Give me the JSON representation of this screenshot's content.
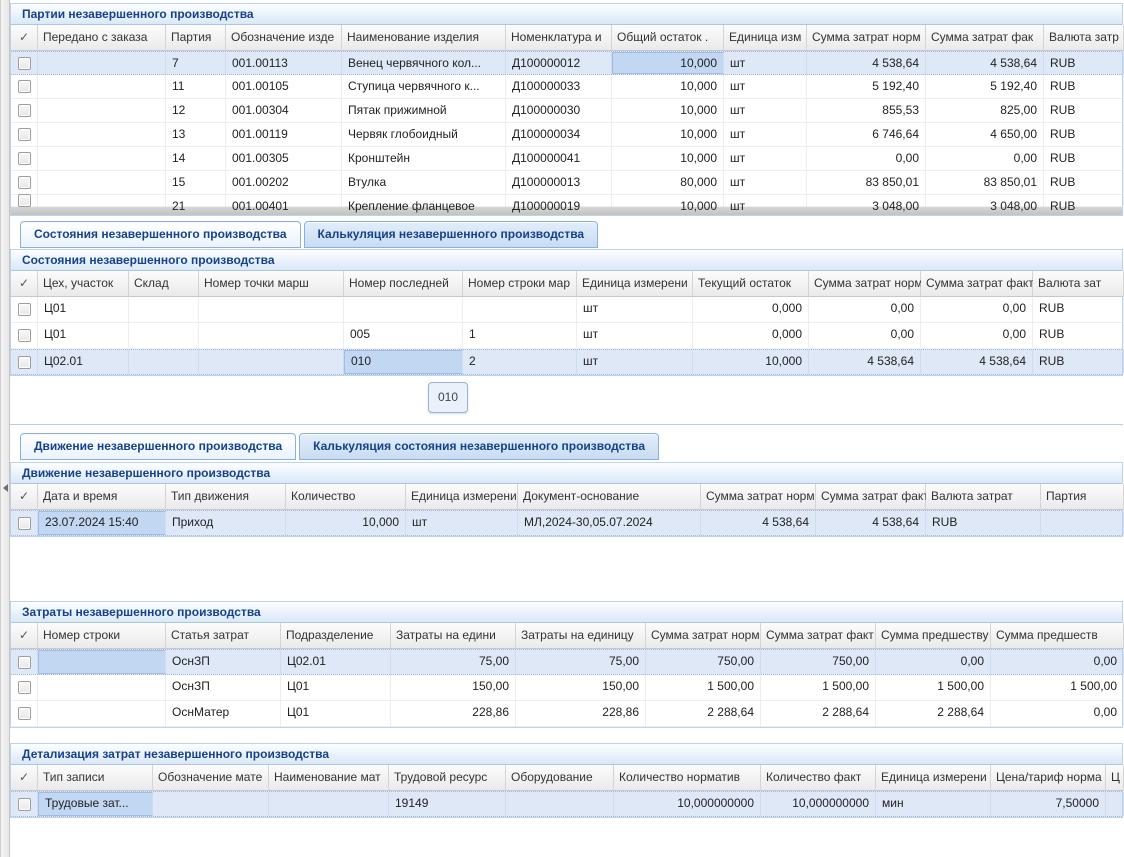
{
  "tooltip": {
    "text": "010"
  },
  "sections": {
    "batches": {
      "title": "Партии незавершенного производства",
      "grid": {
        "check_glyph": "✓",
        "columns": [
          {
            "type": "check",
            "width": 27
          },
          {
            "label": "Передано с заказа",
            "width": 128
          },
          {
            "label": "Партия",
            "width": 60
          },
          {
            "label": "Обозначение изде",
            "width": 116
          },
          {
            "label": "Наименование изделия",
            "width": 164
          },
          {
            "label": "Номенклатура и",
            "width": 106
          },
          {
            "label": "Общий остаток  .",
            "width": 112,
            "align": "right"
          },
          {
            "label": "Единица изм",
            "width": 83
          },
          {
            "label": "Сумма затрат норм",
            "width": 119,
            "align": "right"
          },
          {
            "label": "Сумма затрат фак",
            "width": 118,
            "align": "right"
          },
          {
            "label": "Валюта затр",
            "width": 80
          }
        ],
        "rows": [
          {
            "cells": [
              "",
              "7",
              "001.00113",
              "Венец червячного кол...",
              "Д100000012",
              "10,000",
              "шт",
              "4 538,64",
              "4 538,64",
              "RUB"
            ],
            "selected": true,
            "focus": 6
          },
          {
            "cells": [
              "",
              "11",
              "001.00105",
              "Ступица червячного к...",
              "Д100000033",
              "10,000",
              "шт",
              "5 192,40",
              "5 192,40",
              "RUB"
            ]
          },
          {
            "cells": [
              "",
              "12",
              "001.00304",
              "Пятак прижимной",
              "Д100000030",
              "10,000",
              "шт",
              "855,53",
              "825,00",
              "RUB"
            ]
          },
          {
            "cells": [
              "",
              "13",
              "001.00119",
              "Червяк глобоидный",
              "Д100000034",
              "10,000",
              "шт",
              "6 746,64",
              "4 650,00",
              "RUB"
            ]
          },
          {
            "cells": [
              "",
              "14",
              "001.00305",
              "Кронштейн",
              "Д100000041",
              "10,000",
              "шт",
              "0,00",
              "0,00",
              "RUB"
            ]
          },
          {
            "cells": [
              "",
              "15",
              "001.00202",
              "Втулка",
              "Д100000013",
              "80,000",
              "шт",
              "83 850,01",
              "83 850,01",
              "RUB"
            ]
          },
          {
            "cells": [
              "",
              "21",
              "001.00401",
              "Крепление фланцевое",
              "Д100000019",
              "10,000",
              "шт",
              "3 048,00",
              "3 048,00",
              "RUB"
            ],
            "clipped": true
          }
        ]
      }
    },
    "states": {
      "tabs": [
        {
          "label": "Состояния незавершенного производства",
          "active": true
        },
        {
          "label": "Калькуляция незавершенного производства",
          "active": false
        }
      ],
      "title": "Состояния незавершенного производства",
      "grid": {
        "check_glyph": "✓",
        "columns": [
          {
            "type": "check",
            "width": 27
          },
          {
            "label": "Цех, участок",
            "width": 91
          },
          {
            "label": "Склад",
            "width": 70
          },
          {
            "label": "Номер точки марш",
            "width": 145
          },
          {
            "label": "Номер последней",
            "width": 119
          },
          {
            "label": "Номер строки мар",
            "width": 114
          },
          {
            "label": "Единица измерени",
            "width": 116
          },
          {
            "label": "Текущий остаток",
            "width": 116,
            "align": "right"
          },
          {
            "label": "Сумма затрат норм",
            "width": 112,
            "align": "right"
          },
          {
            "label": "Сумма затрат факт",
            "width": 112,
            "align": "right"
          },
          {
            "label": "Валюта зат",
            "width": 91
          }
        ],
        "rows": [
          {
            "cells": [
              "Ц01",
              "",
              "",
              "",
              "",
              "шт",
              "0,000",
              "0,00",
              "0,00",
              "RUB"
            ]
          },
          {
            "cells": [
              "Ц01",
              "",
              "",
              "005",
              "1",
              "шт",
              "0,000",
              "0,00",
              "0,00",
              "RUB"
            ]
          },
          {
            "cells": [
              "Ц02.01",
              "",
              "",
              "010",
              "2",
              "шт",
              "10,000",
              "4 538,64",
              "4 538,64",
              "RUB"
            ],
            "selected": true,
            "focus": 4
          }
        ]
      }
    },
    "movement": {
      "tabs": [
        {
          "label": "Движение незавершенного производства",
          "active": true
        },
        {
          "label": "Калькуляция состояния незавершенного производства",
          "active": false
        }
      ],
      "title": "Движение незавершенного производства",
      "grid": {
        "check_glyph": "✓",
        "columns": [
          {
            "type": "check",
            "width": 27
          },
          {
            "label": "Дата и время",
            "width": 128
          },
          {
            "label": "Тип движения",
            "width": 120
          },
          {
            "label": "Количество",
            "width": 120,
            "align": "right"
          },
          {
            "label": "Единица измерени",
            "width": 112
          },
          {
            "label": "Документ-основание",
            "width": 183
          },
          {
            "label": "Сумма затрат норм",
            "width": 115,
            "align": "right"
          },
          {
            "label": "Сумма затрат факт",
            "width": 110,
            "align": "right"
          },
          {
            "label": "Валюта затрат",
            "width": 115
          },
          {
            "label": "Партия",
            "width": 83
          }
        ],
        "rows": [
          {
            "cells": [
              "23.07.2024 15:40",
              "Приход",
              "10,000",
              "шт",
              "МЛ,2024-30,05.07.2024",
              "4 538,64",
              "4 538,64",
              "RUB",
              ""
            ],
            "selected": true,
            "focus": 1
          }
        ]
      }
    },
    "costs": {
      "title": "Затраты незавершенного производства",
      "grid": {
        "check_glyph": "✓",
        "columns": [
          {
            "type": "check",
            "width": 27
          },
          {
            "label": "Номер строки",
            "width": 128
          },
          {
            "label": "Статья затрат",
            "width": 115
          },
          {
            "label": "Подразделение",
            "width": 110
          },
          {
            "label": "Затраты на едини",
            "width": 125,
            "align": "right"
          },
          {
            "label": "Затраты на единицу",
            "width": 130,
            "align": "right"
          },
          {
            "label": "Сумма затрат норм",
            "width": 115,
            "align": "right"
          },
          {
            "label": "Сумма затрат факт  .",
            "width": 115,
            "align": "right"
          },
          {
            "label": "Сумма предшеству",
            "width": 115,
            "align": "right"
          },
          {
            "label": "Сумма предшеств",
            "width": 133,
            "align": "right"
          }
        ],
        "rows": [
          {
            "cells": [
              "",
              "ОснЗП",
              "Ц02.01",
              "75,00",
              "75,00",
              "750,00",
              "750,00",
              "0,00",
              "0,00"
            ],
            "selected": true,
            "focus": 1
          },
          {
            "cells": [
              "",
              "ОснЗП",
              "Ц01",
              "150,00",
              "150,00",
              "1 500,00",
              "1 500,00",
              "1 500,00",
              "1 500,00"
            ]
          },
          {
            "cells": [
              "",
              "ОснМатер",
              "Ц01",
              "228,86",
              "228,86",
              "2 288,64",
              "2 288,64",
              "2 288,64",
              "0,00"
            ]
          }
        ]
      }
    },
    "details": {
      "title": "Детализация затрат незавершенного производства",
      "grid": {
        "check_glyph": "✓",
        "columns": [
          {
            "type": "check",
            "width": 27
          },
          {
            "label": "Тип записи",
            "width": 115
          },
          {
            "label": "Обозначение мате",
            "width": 116
          },
          {
            "label": "Наименование мат",
            "width": 120
          },
          {
            "label": "Трудовой ресурс",
            "width": 117
          },
          {
            "label": "Оборудование",
            "width": 108
          },
          {
            "label": "Количество норматив",
            "width": 147,
            "align": "right"
          },
          {
            "label": "Количество факт",
            "width": 115,
            "align": "right"
          },
          {
            "label": "Единица измерени",
            "width": 115
          },
          {
            "label": "Цена/тариф норма",
            "width": 115,
            "align": "right"
          },
          {
            "label": "Ц",
            "width": 18
          }
        ],
        "rows": [
          {
            "cells": [
              "Трудовые зат...",
              "",
              "",
              "19149",
              "",
              "10,000000000",
              "10,000000000",
              "мин",
              "7,50000",
              ""
            ],
            "selected": true,
            "focus": 1
          }
        ]
      }
    }
  }
}
